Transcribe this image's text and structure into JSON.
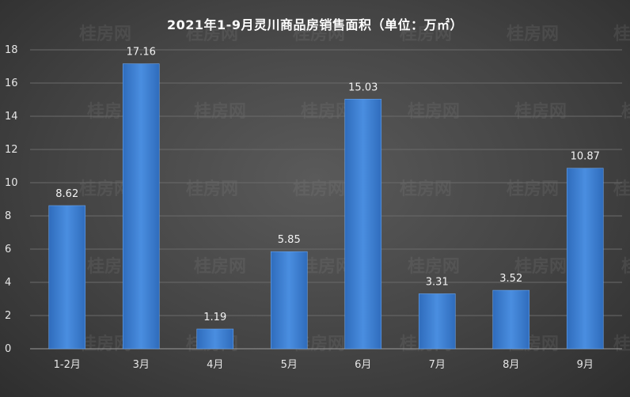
{
  "chart_data": {
    "type": "bar",
    "title": "2021年1-9月灵川商品房销售面积（单位：万㎡）",
    "categories": [
      "1-2月",
      "3月",
      "4月",
      "5月",
      "6月",
      "7月",
      "8月",
      "9月"
    ],
    "values": [
      8.62,
      17.16,
      1.19,
      5.85,
      15.03,
      3.31,
      3.52,
      10.87
    ],
    "value_labels": [
      "8.62",
      "17.16",
      "1.19",
      "5.85",
      "15.03",
      "3.31",
      "3.52",
      "10.87"
    ],
    "ylim": [
      0,
      18
    ],
    "yticks": [
      "0",
      "2",
      "4",
      "6",
      "8",
      "10",
      "12",
      "14",
      "16",
      "18"
    ],
    "grid": true,
    "bar_color": "#3d7fd0"
  },
  "watermark": "桂房网"
}
